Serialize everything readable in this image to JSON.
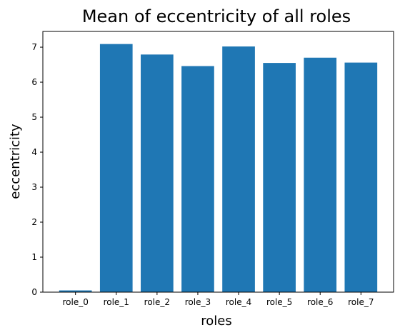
{
  "chart_data": {
    "type": "bar",
    "title": "Mean of eccentricity of all roles",
    "xlabel": "roles",
    "ylabel": "eccentricity",
    "categories": [
      "role_0",
      "role_1",
      "role_2",
      "role_3",
      "role_4",
      "role_5",
      "role_6",
      "role_7"
    ],
    "values": [
      0.05,
      7.09,
      6.79,
      6.46,
      7.02,
      6.55,
      6.7,
      6.56
    ],
    "ylim": [
      0,
      7.45
    ],
    "yticks": [
      0,
      1,
      2,
      3,
      4,
      5,
      6,
      7
    ],
    "grid": false,
    "bar_color": "#1f77b4"
  }
}
